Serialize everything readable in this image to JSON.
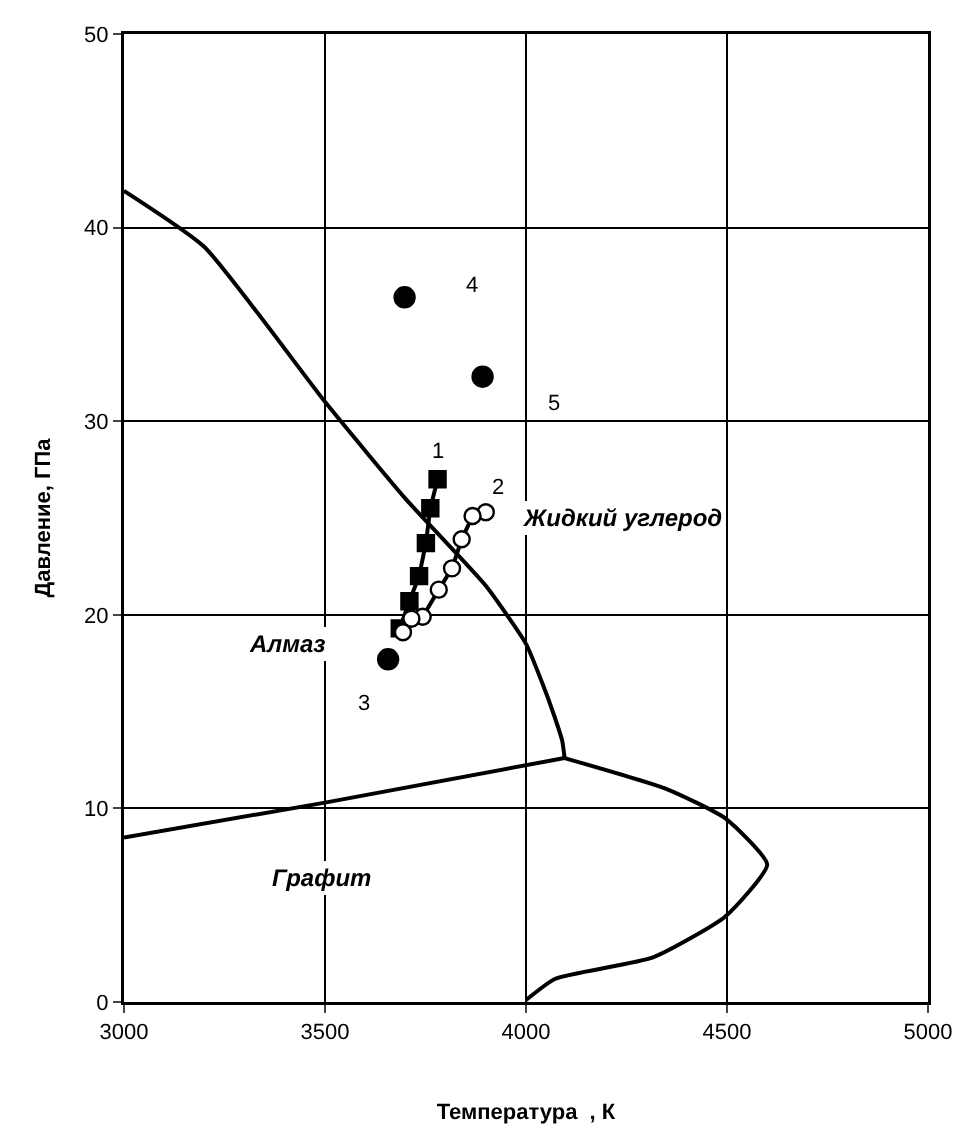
{
  "chart_data": {
    "type": "line",
    "xlabel": "Температура  , К",
    "ylabel": "Давление, ГПа",
    "xlim": [
      3000,
      5000
    ],
    "ylim": [
      0,
      50
    ],
    "xticks": [
      3000,
      3500,
      4000,
      4500,
      5000
    ],
    "yticks": [
      0,
      10,
      20,
      30,
      40,
      50
    ],
    "grid": true,
    "legend": false,
    "line_style": "solid",
    "series": [
      {
        "type": "line",
        "marker": "none",
        "color": "#000000",
        "x": [
          3000,
          3200,
          3500,
          3700,
          3900,
          4000,
          4040,
          4070,
          4090,
          4096
        ],
        "values": [
          41.9,
          39,
          31,
          26,
          21.5,
          18.5,
          16.5,
          14.8,
          13.5,
          12.6
        ]
      },
      {
        "type": "line",
        "marker": "none",
        "color": "#000000",
        "x": [
          3000,
          3500,
          4096
        ],
        "values": [
          8.5,
          10.3,
          12.6
        ]
      },
      {
        "type": "line",
        "marker": "none",
        "color": "#000000",
        "x": [
          4096,
          4350,
          4495,
          4600,
          4495,
          4316,
          4073,
          4000
        ],
        "values": [
          12.6,
          11.0,
          9.5,
          7.1,
          4.4,
          2.3,
          1.2,
          0.1
        ]
      },
      {
        "name": "1",
        "type": "line",
        "marker": "square",
        "color": "#000000",
        "x": [
          3780,
          3762,
          3751,
          3734,
          3710,
          3686
        ],
        "values": [
          27.0,
          25.5,
          23.7,
          22.0,
          20.7,
          19.3
        ]
      },
      {
        "name": "2",
        "type": "line",
        "marker": "circle",
        "color": "#000000",
        "x": [
          3900,
          3867,
          3840,
          3816,
          3783,
          3743,
          3715,
          3694
        ],
        "values": [
          25.3,
          25.1,
          23.9,
          22.4,
          21.3,
          19.9,
          19.8,
          19.1
        ]
      },
      {
        "name": "3",
        "type": "scatter",
        "marker": "circle",
        "color": "#000000",
        "x": [
          3657
        ],
        "values": [
          17.7
        ]
      },
      {
        "name": "4",
        "type": "scatter",
        "marker": "circle",
        "color": "#000000",
        "x": [
          3698
        ],
        "values": [
          36.4
        ]
      },
      {
        "name": "5",
        "type": "scatter",
        "marker": "circle",
        "color": "#000000",
        "x": [
          3892
        ],
        "values": [
          32.3
        ]
      }
    ],
    "annotations": [
      "Алмаз",
      "Жидкий углерод",
      "Графит"
    ]
  }
}
